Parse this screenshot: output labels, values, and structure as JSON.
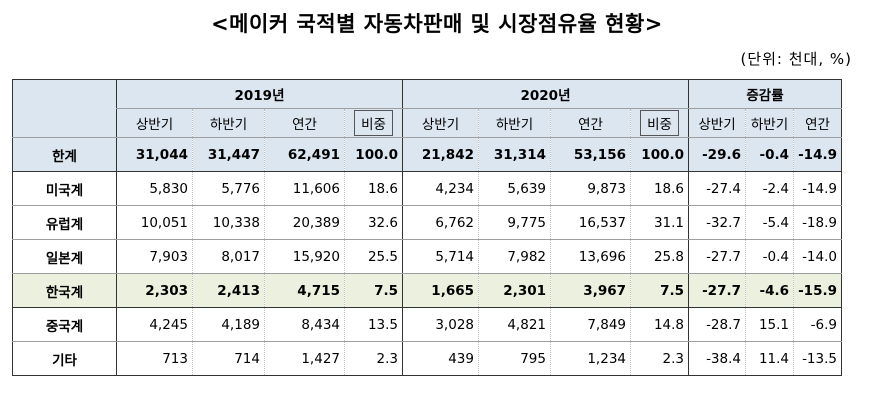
{
  "title": "<메이커 국적별 자동차판매 및 시장점유율 현황>",
  "unit": "(단위: 천대, %)",
  "groups": {
    "y2019": "2019년",
    "y2020": "2020년",
    "growth": "증감률"
  },
  "subheaders": {
    "y2019": [
      "상반기",
      "하반기",
      "연간",
      "비중"
    ],
    "y2020": [
      "상반기",
      "하반기",
      "연간",
      "비중"
    ],
    "growth": [
      "상반기",
      "하반기",
      "연간"
    ]
  },
  "rows": [
    {
      "label": "한계",
      "v": [
        "31,044",
        "31,447",
        "62,491",
        "100.0",
        "21,842",
        "31,314",
        "53,156",
        "100.0",
        "-29.6",
        "-0.4",
        "-14.9"
      ]
    },
    {
      "label": "미국계",
      "v": [
        "5,830",
        "5,776",
        "11,606",
        "18.6",
        "4,234",
        "5,639",
        "9,873",
        "18.6",
        "-27.4",
        "-2.4",
        "-14.9"
      ]
    },
    {
      "label": "유럽계",
      "v": [
        "10,051",
        "10,338",
        "20,389",
        "32.6",
        "6,762",
        "9,775",
        "16,537",
        "31.1",
        "-32.7",
        "-5.4",
        "-18.9"
      ]
    },
    {
      "label": "일본계",
      "v": [
        "7,903",
        "8,017",
        "15,920",
        "25.5",
        "5,714",
        "7,982",
        "13,696",
        "25.8",
        "-27.7",
        "-0.4",
        "-14.0"
      ]
    },
    {
      "label": "한국계",
      "v": [
        "2,303",
        "2,413",
        "4,715",
        "7.5",
        "1,665",
        "2,301",
        "3,967",
        "7.5",
        "-27.7",
        "-4.6",
        "-15.9"
      ]
    },
    {
      "label": "중국계",
      "v": [
        "4,245",
        "4,189",
        "8,434",
        "13.5",
        "3,028",
        "4,821",
        "7,849",
        "14.8",
        "-28.7",
        "15.1",
        "-6.9"
      ]
    },
    {
      "label": "기타",
      "v": [
        "713",
        "714",
        "1,427",
        "2.3",
        "439",
        "795",
        "1,234",
        "2.3",
        "-38.4",
        "11.4",
        "-13.5"
      ]
    }
  ]
}
